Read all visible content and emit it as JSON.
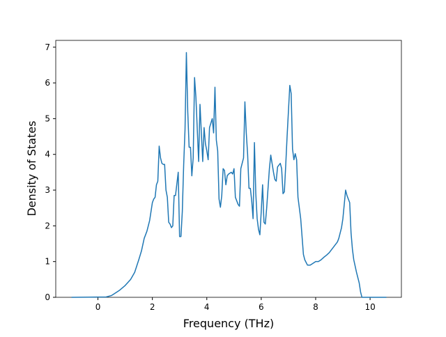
{
  "chart_data": {
    "type": "line",
    "xlabel": "Frequency (THz)",
    "ylabel": "Density of States",
    "xlim": [
      -1.55,
      11.15
    ],
    "ylim": [
      0,
      7.19
    ],
    "xticks": [
      0,
      2,
      4,
      6,
      8,
      10
    ],
    "yticks": [
      0,
      1,
      2,
      3,
      4,
      5,
      6,
      7
    ],
    "grid": false,
    "series": [
      {
        "color": "#1f77b4",
        "x": [
          -0.97,
          0.3,
          0.5,
          0.6,
          0.8,
          1.0,
          1.2,
          1.35,
          1.5,
          1.6,
          1.7,
          1.8,
          1.9,
          2.0,
          2.05,
          2.1,
          2.15,
          2.2,
          2.25,
          2.3,
          2.35,
          2.4,
          2.45,
          2.5,
          2.55,
          2.6,
          2.65,
          2.7,
          2.75,
          2.8,
          2.85,
          2.95,
          3.0,
          3.05,
          3.1,
          3.15,
          3.2,
          3.25,
          3.3,
          3.35,
          3.4,
          3.45,
          3.5,
          3.55,
          3.6,
          3.7,
          3.75,
          3.8,
          3.85,
          3.9,
          3.95,
          4.0,
          4.05,
          4.1,
          4.2,
          4.25,
          4.3,
          4.35,
          4.4,
          4.45,
          4.5,
          4.55,
          4.6,
          4.65,
          4.7,
          4.75,
          4.8,
          4.9,
          4.95,
          5.0,
          5.05,
          5.15,
          5.2,
          5.25,
          5.35,
          5.4,
          5.45,
          5.5,
          5.55,
          5.6,
          5.65,
          5.7,
          5.75,
          5.8,
          5.85,
          5.9,
          5.95,
          6.0,
          6.05,
          6.1,
          6.15,
          6.2,
          6.3,
          6.35,
          6.45,
          6.5,
          6.55,
          6.6,
          6.7,
          6.75,
          6.8,
          6.85,
          6.9,
          6.95,
          7.05,
          7.1,
          7.15,
          7.2,
          7.25,
          7.3,
          7.35,
          7.45,
          7.55,
          7.6,
          7.7,
          7.8,
          7.9,
          8.0,
          8.1,
          8.2,
          8.3,
          8.4,
          8.5,
          8.6,
          8.7,
          8.8,
          8.85,
          8.9,
          8.95,
          9.0,
          9.05,
          9.1,
          9.15,
          9.25,
          9.3,
          9.35,
          9.4,
          9.5,
          9.6,
          9.65,
          9.7,
          10.6
        ],
        "values": [
          0,
          0.01,
          0.05,
          0.1,
          0.2,
          0.33,
          0.5,
          0.7,
          1.05,
          1.3,
          1.65,
          1.85,
          2.15,
          2.65,
          2.75,
          2.8,
          3.15,
          3.25,
          4.23,
          3.9,
          3.75,
          3.72,
          3.72,
          3.0,
          2.8,
          2.1,
          2.05,
          1.95,
          2.0,
          2.85,
          2.85,
          3.5,
          1.7,
          1.7,
          2.4,
          3.7,
          4.7,
          6.85,
          5.2,
          4.2,
          4.2,
          3.4,
          3.9,
          6.15,
          5.6,
          3.8,
          5.4,
          4.6,
          3.8,
          4.75,
          4.3,
          4.1,
          3.85,
          4.75,
          5.0,
          4.6,
          5.88,
          4.4,
          4.1,
          2.75,
          2.52,
          2.85,
          3.6,
          3.55,
          3.15,
          3.4,
          3.45,
          3.5,
          3.45,
          3.6,
          2.8,
          2.6,
          2.55,
          3.6,
          3.9,
          5.47,
          4.6,
          4.0,
          3.05,
          3.05,
          2.7,
          2.2,
          4.33,
          2.9,
          2.2,
          1.9,
          1.75,
          2.4,
          3.15,
          2.1,
          2.05,
          2.5,
          3.6,
          3.98,
          3.5,
          3.3,
          3.25,
          3.65,
          3.75,
          3.6,
          2.9,
          2.95,
          3.7,
          4.5,
          5.93,
          5.7,
          4.15,
          3.85,
          4.02,
          3.85,
          2.8,
          2.2,
          1.2,
          1.05,
          0.9,
          0.9,
          0.95,
          1.0,
          1.0,
          1.05,
          1.12,
          1.18,
          1.25,
          1.35,
          1.45,
          1.55,
          1.65,
          1.8,
          1.95,
          2.2,
          2.6,
          3.0,
          2.85,
          2.65,
          1.8,
          1.35,
          1.05,
          0.7,
          0.4,
          0.15,
          0,
          0
        ]
      }
    ]
  }
}
